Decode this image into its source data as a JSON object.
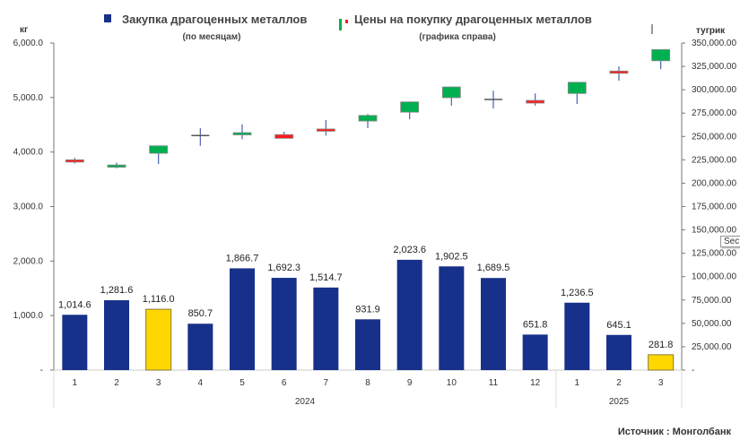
{
  "legend": {
    "bars_label": "Закупка драгоценных металлов",
    "bars_sub": "(по месяцам)",
    "candles_label": "Цены на покупку драгоценных металлов",
    "candles_sub": "(графика справа)"
  },
  "tooltip": "Sec",
  "source": "Источник : Монголбанк",
  "colors": {
    "bar": "#17318a",
    "bar_highlight": "#ffd700",
    "up": "#00b050",
    "down": "#ff1a1a",
    "wick": "#4a62b0"
  },
  "chart_data": {
    "type": "bar+candlestick",
    "categories": [
      "1",
      "2",
      "3",
      "4",
      "5",
      "6",
      "7",
      "8",
      "9",
      "10",
      "11",
      "12",
      "1",
      "2",
      "3"
    ],
    "year_groups": [
      {
        "label": "2024",
        "count": 12
      },
      {
        "label": "2025",
        "count": 3
      }
    ],
    "left_axis": {
      "label": "кг",
      "range": [
        0,
        6000
      ],
      "ticks": [
        "-",
        "1,000.0",
        "2,000.0",
        "3,000.0",
        "4,000.0",
        "5,000.0",
        "6,000.0"
      ]
    },
    "right_axis": {
      "label": "тугрик",
      "range": [
        0,
        350000
      ],
      "ticks": [
        "-",
        "25,000.00",
        "50,000.00",
        "75,000.00",
        "100,000.00",
        "125,000.00",
        "150,000.00",
        "175,000.00",
        "200,000.00",
        "225,000.00",
        "250,000.00",
        "275,000.00",
        "300,000.00",
        "325,000.00",
        "350,000.00"
      ]
    },
    "bars": {
      "values": [
        1014.6,
        1281.6,
        1116.0,
        850.7,
        1866.7,
        1692.3,
        1514.7,
        931.9,
        2023.6,
        1902.5,
        1689.5,
        651.8,
        1236.5,
        645.1,
        281.8
      ],
      "labels": [
        "1,014.6",
        "1,281.6",
        "1,116.0",
        "850.7",
        "1,866.7",
        "1,692.3",
        "1,514.7",
        "931.9",
        "2,023.6",
        "1,902.5",
        "1,689.5",
        "651.8",
        "1,236.5",
        "645.1",
        "281.8"
      ],
      "highlighted": [
        2,
        14
      ]
    },
    "candles": [
      {
        "open": 225000,
        "close": 223000,
        "high": 227000,
        "low": 221000
      },
      {
        "open": 218500,
        "close": 219500,
        "high": 222000,
        "low": 216000
      },
      {
        "open": 232000,
        "close": 240000,
        "high": 240000,
        "low": 220500
      },
      {
        "open": 251000,
        "close": 251000,
        "high": 259000,
        "low": 240000
      },
      {
        "open": 252200,
        "close": 254100,
        "high": 263000,
        "low": 247000
      },
      {
        "open": 252000,
        "close": 248000,
        "high": 255000,
        "low": 248000
      },
      {
        "open": 258000,
        "close": 256000,
        "high": 267500,
        "low": 251000
      },
      {
        "open": 266500,
        "close": 272500,
        "high": 274000,
        "low": 259000
      },
      {
        "open": 276000,
        "close": 287000,
        "high": 287000,
        "low": 268500
      },
      {
        "open": 291500,
        "close": 303000,
        "high": 303000,
        "low": 283000
      },
      {
        "open": 289600,
        "close": 289600,
        "high": 299000,
        "low": 280000
      },
      {
        "open": 288600,
        "close": 285700,
        "high": 296000,
        "low": 283000
      },
      {
        "open": 296000,
        "close": 308000,
        "high": 308000,
        "low": 284800
      },
      {
        "open": 320000,
        "close": 318500,
        "high": 325000,
        "low": 309700
      },
      {
        "open": 331000,
        "close": 343000,
        "high": 343000,
        "low": 322000
      }
    ]
  }
}
